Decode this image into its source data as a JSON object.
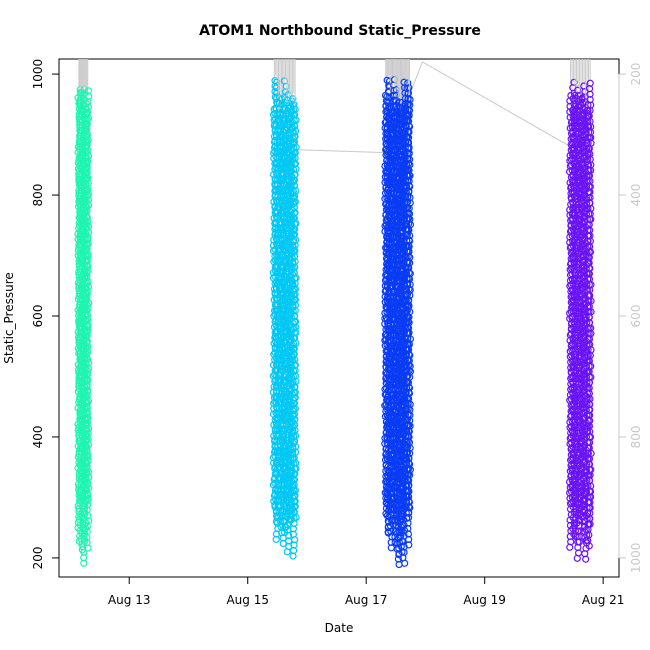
{
  "chart_data": {
    "type": "scatter",
    "title": "ATOM1 Northbound Static_Pressure",
    "xlabel": "Date",
    "ylabel": "Static_Pressure",
    "x_ticks": [
      "Aug 13",
      "Aug 15",
      "Aug 17",
      "Aug 19",
      "Aug 21"
    ],
    "x_tick_days": [
      13,
      15,
      17,
      19,
      21
    ],
    "xlim_days": [
      12.0,
      21.2
    ],
    "y_ticks": [
      200,
      400,
      600,
      800,
      1000
    ],
    "ylim": [
      180,
      1020
    ],
    "y_right_ticks": [
      200,
      400,
      600,
      800,
      1000
    ],
    "y_right_reversed": true,
    "grid": false,
    "colors": {
      "group1": "#1ef5b0",
      "group2": "#00c8f5",
      "group3": "#0a3cf5",
      "group4": "#6a14f5",
      "line": "#c8c8c8",
      "right_axis": "#c8c8c8"
    },
    "profile_groups": [
      {
        "color": "#1ef5b0",
        "day_start": 12.15,
        "day_end": 12.3,
        "profiles": 10,
        "min": 188,
        "max": 998
      },
      {
        "color": "#00c8f5",
        "day_start": 15.45,
        "day_end": 15.8,
        "profiles": 16,
        "min": 196,
        "max": 998
      },
      {
        "color": "#0a3cf5",
        "day_start": 17.33,
        "day_end": 17.73,
        "profiles": 22,
        "min": 186,
        "max": 1000
      },
      {
        "color": "#6a14f5",
        "day_start": 20.45,
        "day_end": 20.78,
        "profiles": 14,
        "min": 186,
        "max": 997
      }
    ],
    "connecting_line": [
      {
        "day": 15.85,
        "value": 875
      },
      {
        "day": 17.35,
        "value": 870
      },
      {
        "day": 17.95,
        "value": 1020
      },
      {
        "day": 20.45,
        "value": 880
      }
    ]
  }
}
